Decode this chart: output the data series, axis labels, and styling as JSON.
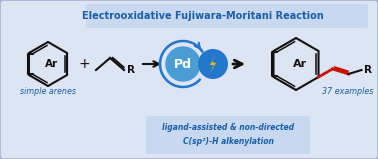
{
  "title": "Electrooxidative Fujiwara-Moritani Reaction",
  "title_color": "#1a5fa8",
  "title_bg_color": "#c8d8f0",
  "outer_bg_color": "#dde5f5",
  "label_simple_arenes": "simple arenes",
  "label_37": "37 examples",
  "label_bottom_line1": "ligand-assisted & non-directed",
  "label_bottom_line2": "C(sp²)-H alkenylation",
  "label_color": "#1a5fa8",
  "pd_circle_color": "#4a9dd4",
  "pd_arc_color": "#2277cc",
  "pd_label": "Pd",
  "lightning_color": "#f0b800",
  "lightning_circle_color": "#2277cc",
  "arrow_color": "#111111",
  "bond_color": "#111111",
  "red_bond_color": "#cc1100",
  "plus_sign": "+",
  "R_label": "R",
  "Ar_label": "Ar",
  "figw": 3.78,
  "figh": 1.59,
  "dpi": 100
}
